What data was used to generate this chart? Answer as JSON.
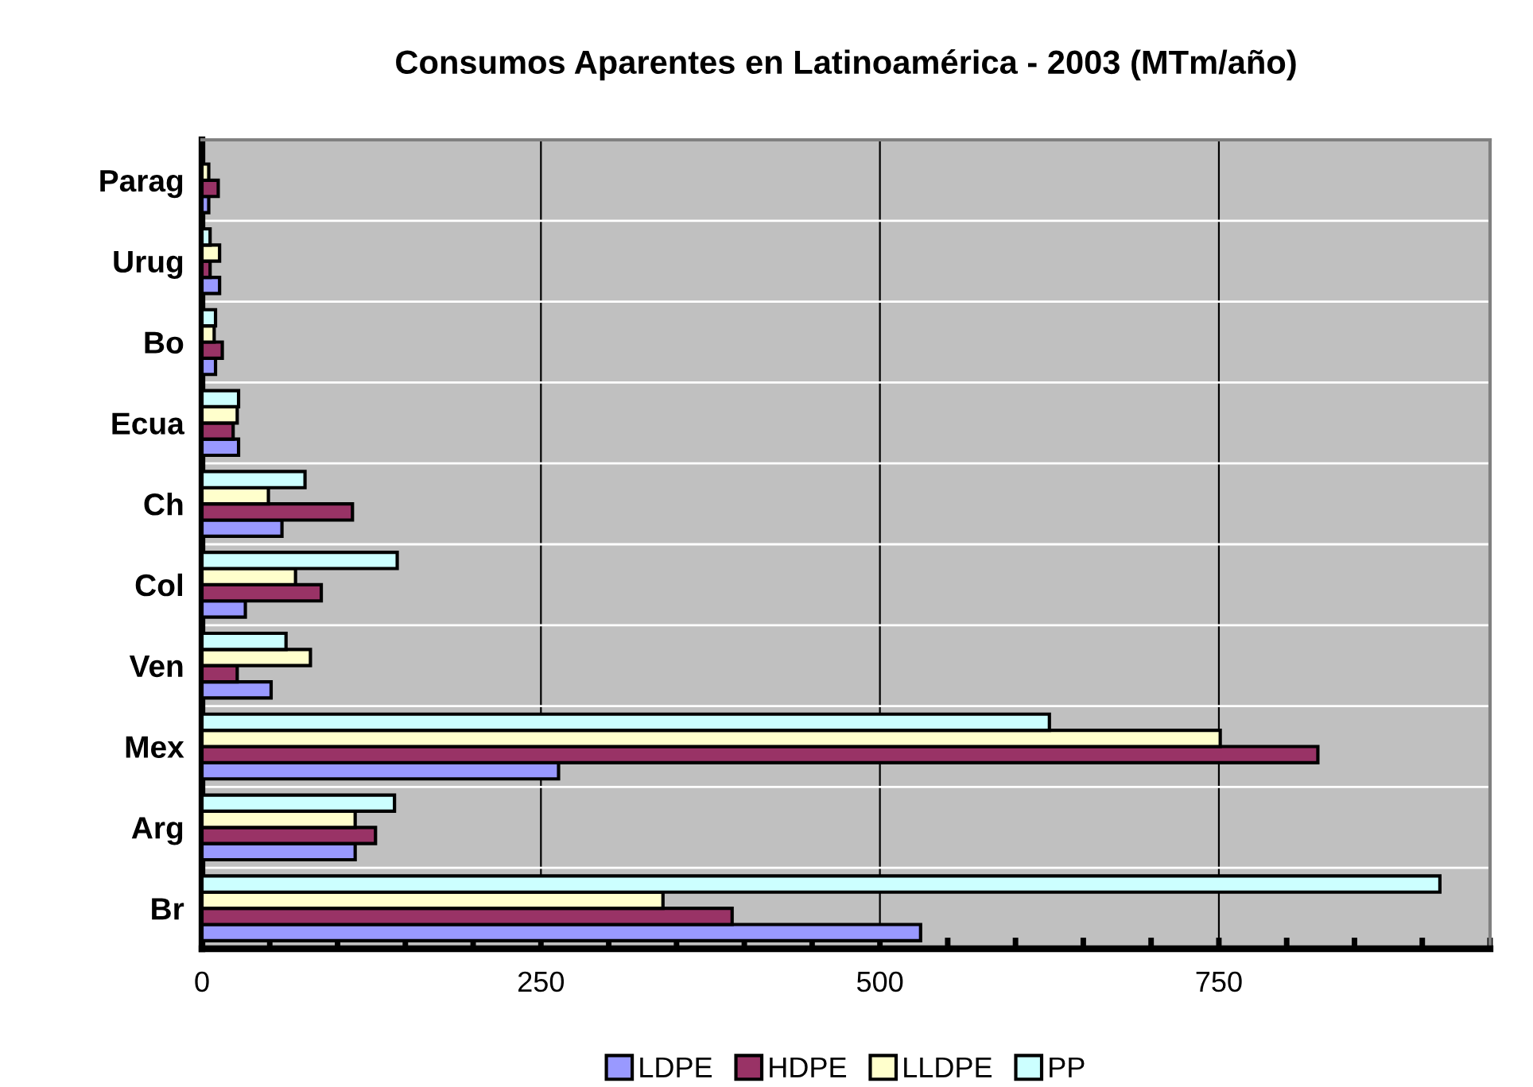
{
  "chart_data": {
    "type": "bar",
    "orientation": "horizontal",
    "title": "Consumos Aparentes en Latinoamérica - 2003 (MTm/año)",
    "categories": [
      "Parag",
      "Urug",
      "Bo",
      "Ecua",
      "Ch",
      "Col",
      "Ven",
      "Mex",
      "Arg",
      "Br"
    ],
    "series": [
      {
        "name": "LDPE",
        "color": "#9999ff",
        "values": [
          5,
          13,
          10,
          27,
          59,
          32,
          51,
          263,
          113,
          530
        ]
      },
      {
        "name": "HDPE",
        "color": "#993366",
        "values": [
          12,
          6,
          15,
          23,
          111,
          88,
          26,
          823,
          128,
          391
        ]
      },
      {
        "name": "LLDPE",
        "color": "#ffffcc",
        "values": [
          5,
          13,
          9,
          26,
          49,
          69,
          80,
          751,
          113,
          340
        ]
      },
      {
        "name": "PP",
        "color": "#ccffff",
        "values": [
          null,
          6,
          10,
          27,
          76,
          144,
          62,
          625,
          142,
          913
        ]
      }
    ],
    "xlim": [
      0,
      950
    ],
    "xticks": [
      0,
      {
        "value": 50,
        "label": null
      },
      {
        "value": 100,
        "label": null
      },
      {
        "value": 150,
        "label": null
      },
      {
        "value": 200,
        "label": null
      },
      250,
      {
        "value": 300,
        "label": null
      },
      {
        "value": 350,
        "label": null
      },
      {
        "value": 400,
        "label": null
      },
      {
        "value": 450,
        "label": null
      },
      500,
      {
        "value": 550,
        "label": null
      },
      {
        "value": 600,
        "label": null
      },
      {
        "value": 650,
        "label": null
      },
      {
        "value": 700,
        "label": null
      },
      750,
      {
        "value": 800,
        "label": null
      },
      {
        "value": 850,
        "label": null
      },
      {
        "value": 900,
        "label": null
      },
      {
        "value": 950,
        "label": null
      }
    ],
    "grid": true,
    "legend": "bottom"
  }
}
